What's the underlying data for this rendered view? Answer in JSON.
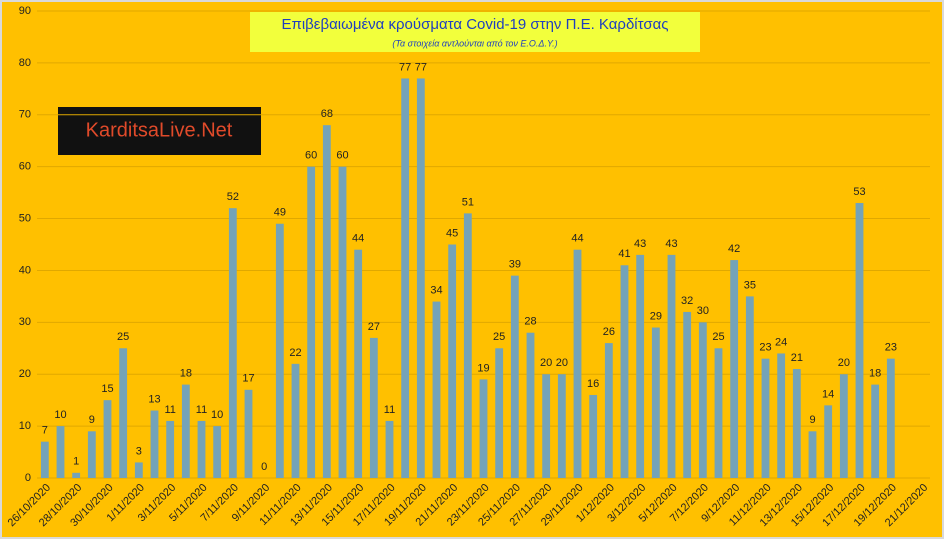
{
  "chart_data": {
    "type": "bar",
    "title": "Επιβεβαιωμένα κρούσματα Covid-19 στην Π.Ε. Καρδίτσας",
    "subtitle": "(Τα στοιχεία αντλούνται από τον Ε.Ο.Δ.Υ.)",
    "watermark": "KarditsaLive.Net",
    "categories": [
      "26/10/2020",
      null,
      "28/10/2020",
      null,
      "30/10/2020",
      null,
      "1/11/2020",
      null,
      "3/11/2020",
      null,
      "5/11/2020",
      null,
      "7/11/2020",
      null,
      "9/11/2020",
      null,
      "11/11/2020",
      null,
      "13/11/2020",
      null,
      "15/11/2020",
      null,
      "17/11/2020",
      null,
      "19/11/2020",
      null,
      "21/11/2020",
      null,
      "23/11/2020",
      null,
      "25/11/2020",
      null,
      "27/11/2020",
      null,
      "29/11/2020",
      null,
      "1/12/2020",
      null,
      "3/12/2020",
      null,
      "5/12/2020",
      null,
      "7/12/2020",
      null,
      "9/12/2020",
      null,
      "11/12/2020",
      null,
      "13/12/2020",
      null,
      "15/12/2020",
      null,
      "17/12/2020",
      null,
      "19/12/2020",
      null,
      "21/12/2020"
    ],
    "values": [
      7,
      10,
      1,
      9,
      15,
      25,
      3,
      13,
      11,
      18,
      11,
      10,
      52,
      17,
      0,
      49,
      22,
      60,
      68,
      60,
      44,
      27,
      11,
      77,
      77,
      34,
      45,
      51,
      19,
      25,
      39,
      28,
      20,
      20,
      44,
      16,
      26,
      41,
      43,
      29,
      43,
      32,
      30,
      25,
      42,
      35,
      23,
      24,
      21,
      9,
      14,
      20,
      53,
      18,
      23,
      null,
      null
    ],
    "color": "#74a3b8",
    "background": "#ffc000",
    "ylim": [
      0,
      90
    ],
    "yticks": [
      0,
      10,
      20,
      30,
      40,
      50,
      60,
      70,
      80,
      90
    ],
    "grid": true
  }
}
